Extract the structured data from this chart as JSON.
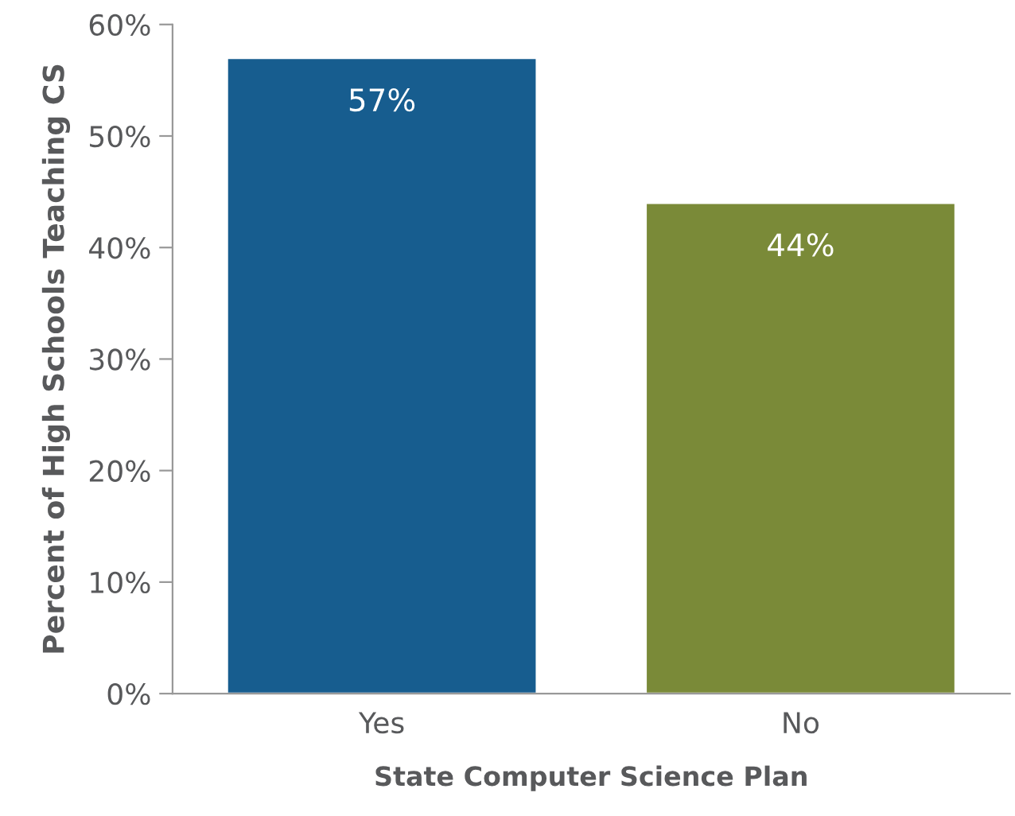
{
  "chart_data": {
    "type": "bar",
    "xlabel": "State Computer Science Plan",
    "ylabel": "Percent of High Schools Teaching CS",
    "categories": [
      "Yes",
      "No"
    ],
    "values": [
      57,
      44
    ],
    "colors": [
      "#175d8f",
      "#7a8a38"
    ],
    "value_labels": [
      "57%",
      "44%"
    ],
    "ylim": [
      0,
      60
    ],
    "yticks": [
      {
        "value": 0,
        "label": "0%"
      },
      {
        "value": 10,
        "label": "10%"
      },
      {
        "value": 20,
        "label": "20%"
      },
      {
        "value": 30,
        "label": "30%"
      },
      {
        "value": 40,
        "label": "40%"
      },
      {
        "value": 50,
        "label": "50%"
      },
      {
        "value": 60,
        "label": "60%"
      }
    ],
    "grid": false,
    "legend": false
  }
}
